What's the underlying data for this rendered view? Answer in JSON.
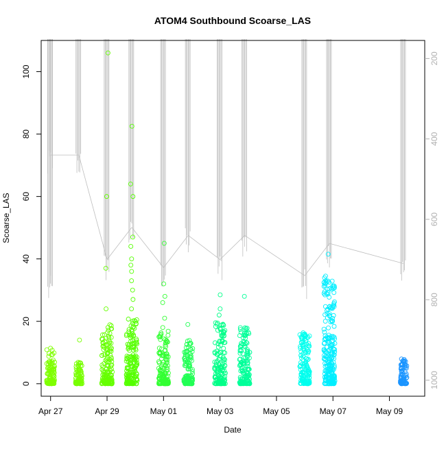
{
  "chart_data": {
    "type": "scatter",
    "title": "ATOM4 Southbound Scoarse_LAS",
    "xlabel": "Date",
    "ylabel": "Scoarse_LAS",
    "x_range_days": [
      "2024-04-26T16:00",
      "2024-05-10T06:00"
    ],
    "ylim": [
      -4,
      110
    ],
    "y_ticks": [
      0,
      20,
      40,
      60,
      80,
      100
    ],
    "x_ticks": [
      {
        "date": "2024-04-27",
        "label": "Apr 27"
      },
      {
        "date": "2024-04-29",
        "label": "Apr 29"
      },
      {
        "date": "2024-05-01",
        "label": "May 01"
      },
      {
        "date": "2024-05-03",
        "label": "May 03"
      },
      {
        "date": "2024-05-05",
        "label": "May 05"
      },
      {
        "date": "2024-05-07",
        "label": "May 07"
      },
      {
        "date": "2024-05-09",
        "label": "May 09"
      }
    ],
    "secondary_axis": {
      "side": "right",
      "reversed": true,
      "range": [
        155,
        1040
      ],
      "ticks": [
        200,
        400,
        600,
        800,
        1000
      ],
      "color": "#b0b0b0"
    },
    "grid": false,
    "clusters": [
      {
        "x": "2024-04-27T00:00",
        "color": "#7fff00",
        "ymax": 11.5,
        "outliers": []
      },
      {
        "x": "2024-04-28T00:00",
        "color": "#78ff00",
        "ymax": 7,
        "outliers": [
          14
        ]
      },
      {
        "x": "2024-04-29T00:00",
        "color": "#66ff00",
        "ymax": 19,
        "outliers": [
          24,
          37,
          60,
          106
        ]
      },
      {
        "x": "2024-04-29T21:00",
        "color": "#55ff00",
        "ymax": 22,
        "outliers": [
          24,
          27,
          30,
          33,
          36,
          38,
          40,
          44,
          47,
          60,
          64,
          82.5
        ]
      },
      {
        "x": "2024-05-01T00:00",
        "color": "#33ff33",
        "ymax": 17,
        "outliers": [
          18,
          21,
          26,
          28,
          32,
          45
        ]
      },
      {
        "x": "2024-05-01T21:00",
        "color": "#22ff55",
        "ymax": 14,
        "outliers": [
          19
        ]
      },
      {
        "x": "2024-05-03T00:00",
        "color": "#00ff88",
        "ymax": 20,
        "outliers": [
          22,
          24,
          28.5
        ]
      },
      {
        "x": "2024-05-03T21:00",
        "color": "#00ff99",
        "ymax": 18,
        "outliers": [
          28
        ]
      },
      {
        "x": "2024-05-06T00:00",
        "color": "#00ffee",
        "ymax": 16.5,
        "outliers": []
      },
      {
        "x": "2024-05-06T21:00",
        "color": "#00eeff",
        "ymax": 34.5,
        "outliers": [
          41.5
        ]
      },
      {
        "x": "2024-05-09T12:00",
        "color": "#1b95ff",
        "ymax": 8,
        "outliers": []
      }
    ],
    "secondary_series": {
      "name": "",
      "color": "#bebebe",
      "casts": [
        {
          "x": "2024-04-27T00:00",
          "depths": [
            0,
            820
          ]
        },
        {
          "x": "2024-04-27T00:00",
          "depths": [
            0,
            500
          ]
        },
        {
          "x": "2024-04-28T00:00",
          "depths": [
            0,
            500
          ]
        },
        {
          "x": "2024-04-29T00:00",
          "depths": [
            0,
            760
          ]
        },
        {
          "x": "2024-04-29T21:00",
          "depths": [
            0,
            680
          ]
        },
        {
          "x": "2024-05-01T00:00",
          "depths": [
            0,
            780
          ]
        },
        {
          "x": "2024-05-01T21:00",
          "depths": [
            0,
            700
          ]
        },
        {
          "x": "2024-05-03T00:00",
          "depths": [
            0,
            760
          ]
        },
        {
          "x": "2024-05-03T21:00",
          "depths": [
            0,
            700
          ]
        },
        {
          "x": "2024-05-06T00:00",
          "depths": [
            0,
            800
          ]
        },
        {
          "x": "2024-05-06T21:00",
          "depths": [
            0,
            720
          ]
        },
        {
          "x": "2024-05-09T12:00",
          "depths": [
            0,
            770
          ]
        }
      ]
    }
  }
}
